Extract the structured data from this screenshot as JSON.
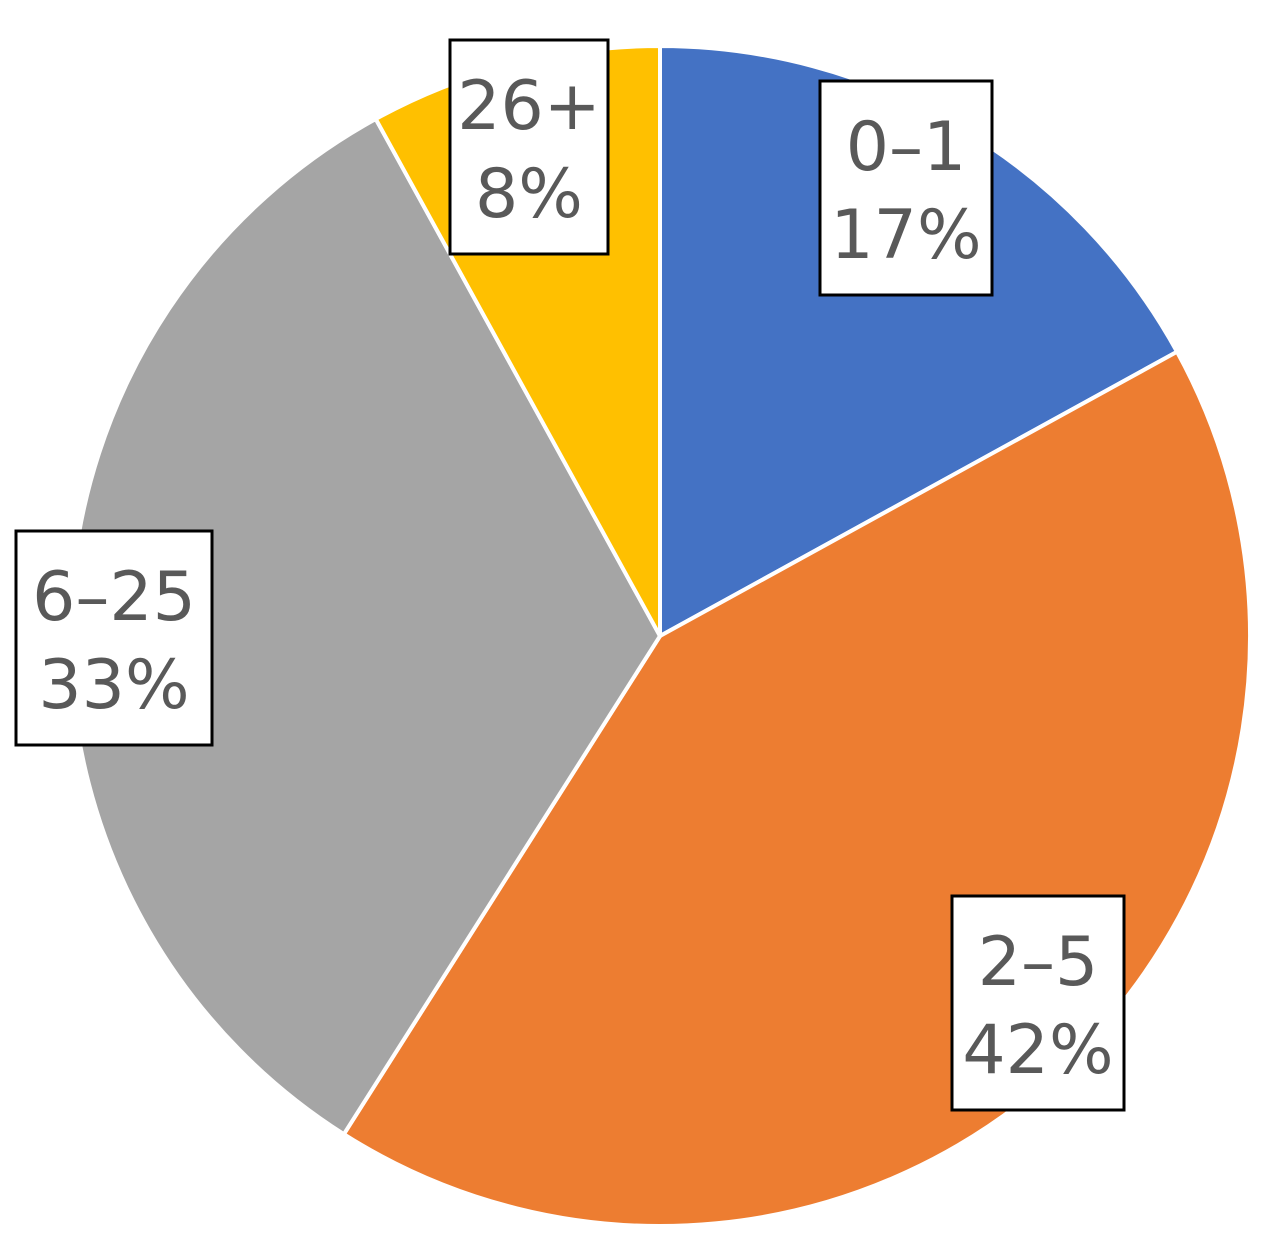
{
  "chart_data": {
    "type": "pie",
    "title": "",
    "start_angle_deg": 0,
    "direction": "clockwise",
    "slices": [
      {
        "name": "0–1",
        "value": 17,
        "label": "17%",
        "color": "#4472C4"
      },
      {
        "name": "2–5",
        "value": 42,
        "label": "42%",
        "color": "#ED7D31"
      },
      {
        "name": "6–25",
        "value": 33,
        "label": "33%",
        "color": "#A5A5A5"
      },
      {
        "name": "26+",
        "value": 8,
        "label": "8%",
        "color": "#FFC000"
      }
    ]
  }
}
